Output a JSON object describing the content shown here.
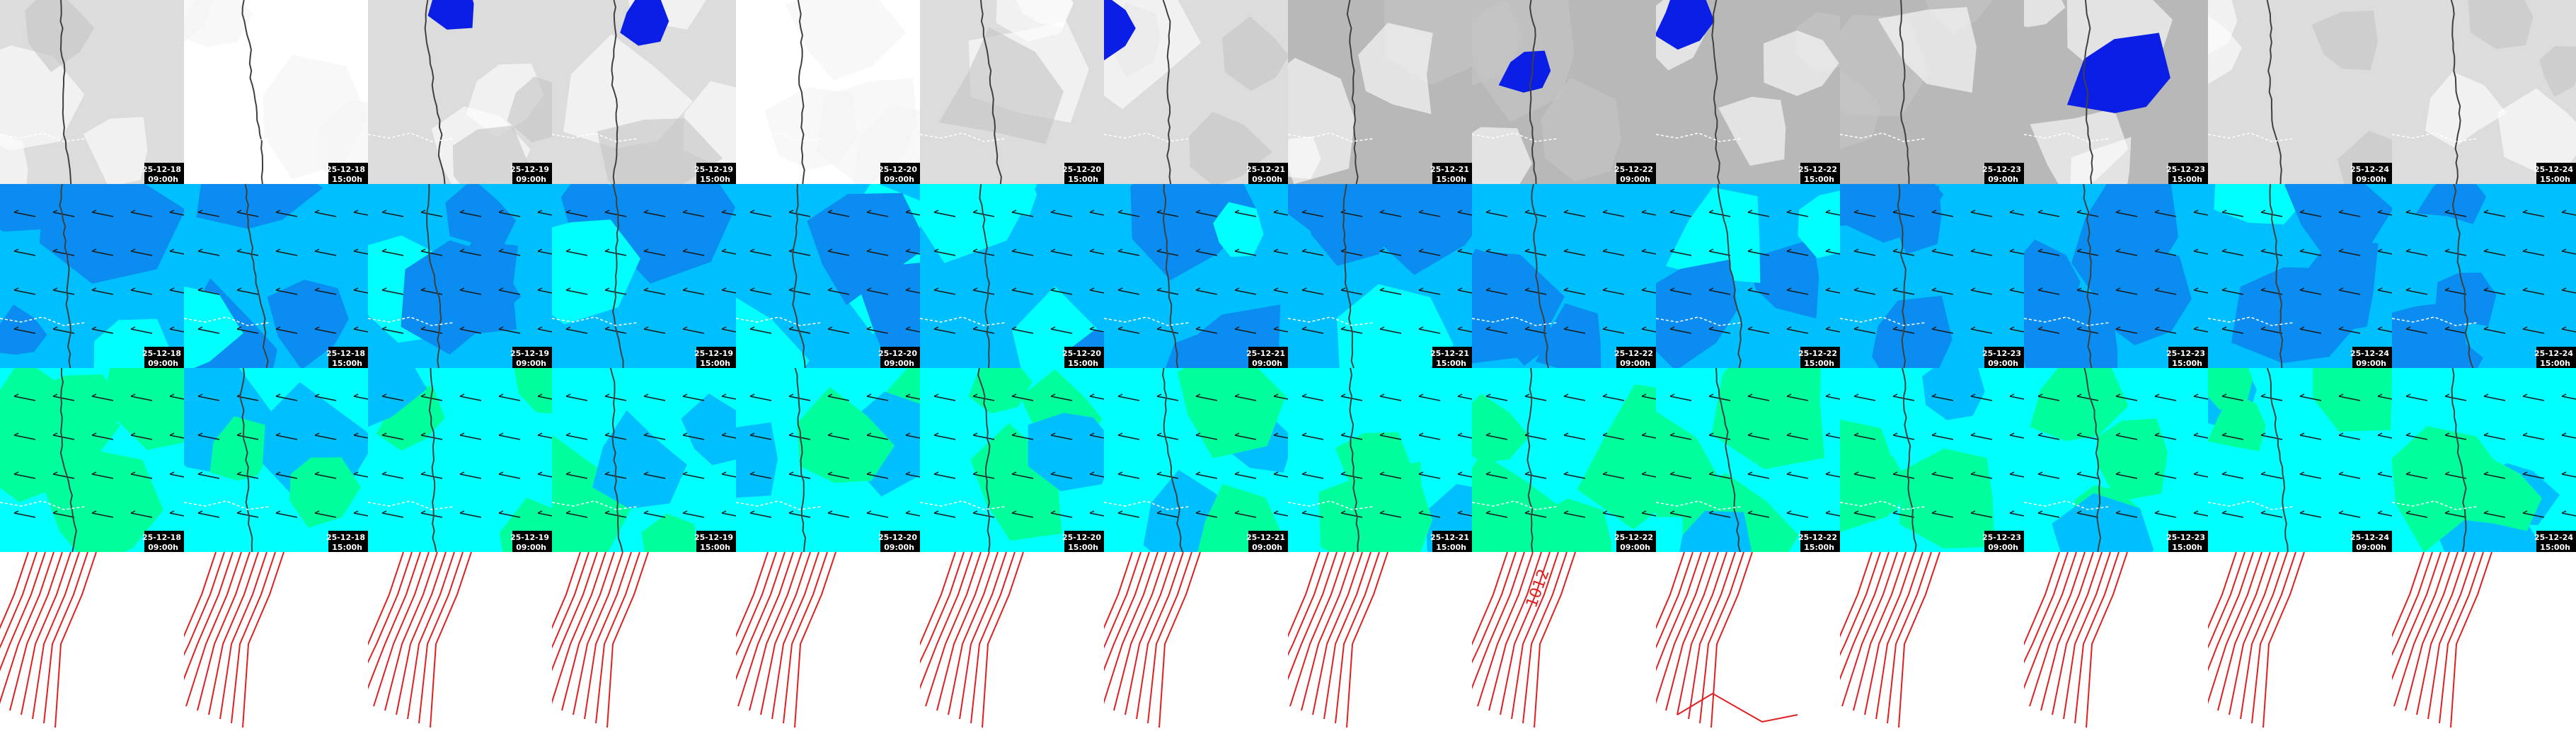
{
  "columns": [
    {
      "date": "25-12-18",
      "time": "09:00h"
    },
    {
      "date": "25-12-18",
      "time": "15:00h"
    },
    {
      "date": "25-12-19",
      "time": "09:00h"
    },
    {
      "date": "25-12-19",
      "time": "15:00h"
    },
    {
      "date": "25-12-20",
      "time": "09:00h"
    },
    {
      "date": "25-12-20",
      "time": "15:00h"
    },
    {
      "date": "25-12-21",
      "time": "09:00h"
    },
    {
      "date": "25-12-21",
      "time": "15:00h"
    },
    {
      "date": "25-12-22",
      "time": "09:00h"
    },
    {
      "date": "25-12-22",
      "time": "15:00h"
    },
    {
      "date": "25-12-23",
      "time": "09:00h"
    },
    {
      "date": "25-12-23",
      "time": "15:00h"
    },
    {
      "date": "25-12-24",
      "time": "09:00h"
    },
    {
      "date": "25-12-24",
      "time": "15:00h"
    }
  ],
  "isobar_label": "1012"
}
